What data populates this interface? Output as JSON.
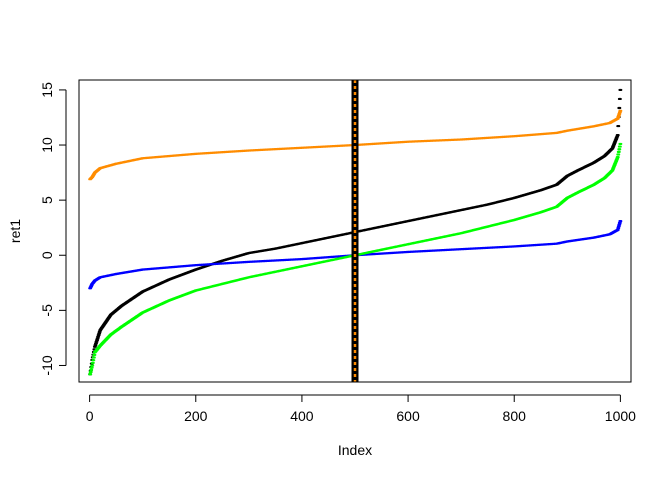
{
  "chart_data": {
    "type": "scatter",
    "title": "",
    "xlabel": "Index",
    "ylabel": "ret1",
    "xlim": [
      -20,
      1020
    ],
    "ylim": [
      -11.5,
      15.9
    ],
    "xticks": [
      0,
      200,
      400,
      600,
      800,
      1000
    ],
    "yticks": [
      -10,
      -5,
      0,
      5,
      10,
      15
    ],
    "n": 1000,
    "series": [
      {
        "name": "black",
        "color": "#000000",
        "points": [
          [
            1,
            -10.8
          ],
          [
            5,
            -9.5
          ],
          [
            10,
            -8.3
          ],
          [
            20,
            -6.8
          ],
          [
            40,
            -5.4
          ],
          [
            60,
            -4.6
          ],
          [
            100,
            -3.3
          ],
          [
            150,
            -2.2
          ],
          [
            200,
            -1.3
          ],
          [
            250,
            -0.5
          ],
          [
            300,
            0.2
          ],
          [
            350,
            0.6
          ],
          [
            400,
            1.1
          ],
          [
            450,
            1.6
          ],
          [
            500,
            2.1
          ],
          [
            550,
            2.6
          ],
          [
            600,
            3.1
          ],
          [
            650,
            3.6
          ],
          [
            700,
            4.1
          ],
          [
            750,
            4.6
          ],
          [
            800,
            5.2
          ],
          [
            850,
            5.9
          ],
          [
            880,
            6.4
          ],
          [
            900,
            7.2
          ],
          [
            920,
            7.7
          ],
          [
            950,
            8.4
          ],
          [
            970,
            9.0
          ],
          [
            985,
            9.7
          ],
          [
            995,
            10.9
          ],
          [
            1000,
            15.0
          ]
        ]
      },
      {
        "name": "blue",
        "color": "#0000ff",
        "points": [
          [
            1,
            -3.0
          ],
          [
            5,
            -2.6
          ],
          [
            10,
            -2.3
          ],
          [
            20,
            -2.0
          ],
          [
            50,
            -1.7
          ],
          [
            100,
            -1.3
          ],
          [
            200,
            -0.9
          ],
          [
            300,
            -0.6
          ],
          [
            400,
            -0.35
          ],
          [
            500,
            0.0
          ],
          [
            600,
            0.3
          ],
          [
            700,
            0.55
          ],
          [
            800,
            0.8
          ],
          [
            880,
            1.05
          ],
          [
            900,
            1.25
          ],
          [
            950,
            1.6
          ],
          [
            980,
            1.9
          ],
          [
            995,
            2.3
          ],
          [
            1000,
            3.1
          ]
        ]
      },
      {
        "name": "green",
        "color": "#00ff00",
        "points": [
          [
            1,
            -10.8
          ],
          [
            5,
            -10.0
          ],
          [
            10,
            -8.8
          ],
          [
            20,
            -8.2
          ],
          [
            40,
            -7.2
          ],
          [
            60,
            -6.5
          ],
          [
            100,
            -5.2
          ],
          [
            150,
            -4.1
          ],
          [
            200,
            -3.2
          ],
          [
            250,
            -2.6
          ],
          [
            300,
            -2.0
          ],
          [
            350,
            -1.5
          ],
          [
            400,
            -1.0
          ],
          [
            450,
            -0.5
          ],
          [
            500,
            0.0
          ],
          [
            550,
            0.5
          ],
          [
            600,
            1.0
          ],
          [
            650,
            1.5
          ],
          [
            700,
            2.0
          ],
          [
            750,
            2.6
          ],
          [
            800,
            3.2
          ],
          [
            850,
            3.9
          ],
          [
            880,
            4.4
          ],
          [
            900,
            5.2
          ],
          [
            920,
            5.7
          ],
          [
            950,
            6.4
          ],
          [
            970,
            7.0
          ],
          [
            985,
            7.7
          ],
          [
            995,
            8.9
          ],
          [
            1000,
            10.1
          ]
        ]
      },
      {
        "name": "orange",
        "color": "#ff8c00",
        "points": [
          [
            1,
            6.9
          ],
          [
            5,
            7.1
          ],
          [
            10,
            7.5
          ],
          [
            20,
            7.9
          ],
          [
            50,
            8.3
          ],
          [
            100,
            8.8
          ],
          [
            200,
            9.2
          ],
          [
            300,
            9.5
          ],
          [
            400,
            9.75
          ],
          [
            500,
            10.0
          ],
          [
            600,
            10.3
          ],
          [
            700,
            10.5
          ],
          [
            800,
            10.8
          ],
          [
            880,
            11.1
          ],
          [
            900,
            11.3
          ],
          [
            950,
            11.7
          ],
          [
            980,
            12.0
          ],
          [
            995,
            12.4
          ],
          [
            1000,
            13.1
          ]
        ]
      }
    ],
    "vlines": [
      {
        "x": 500,
        "color": "#000000",
        "style": "solid"
      },
      {
        "x": 500,
        "color": "#ff8c00",
        "style": "dotted"
      }
    ]
  }
}
